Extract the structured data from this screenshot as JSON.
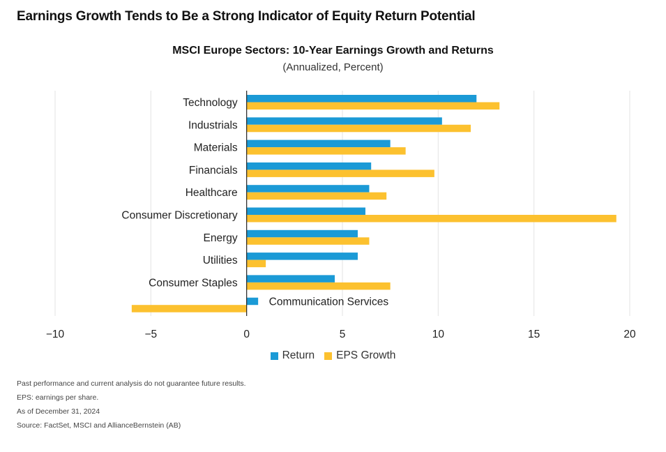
{
  "headline": "Earnings Growth Tends to Be a Strong Indicator of Equity Return Potential",
  "colors": {
    "return": "#1b9ad6",
    "eps": "#fcc12f",
    "grid": "#e3e3e3",
    "axis": "#222222"
  },
  "chart_data": {
    "type": "bar",
    "orientation": "horizontal",
    "title": "MSCI Europe Sectors: 10-Year Earnings Growth and Returns",
    "subtitle": "(Annualized, Percent)",
    "categories": [
      "Technology",
      "Industrials",
      "Materials",
      "Financials",
      "Healthcare",
      "Consumer Discretionary",
      "Energy",
      "Utilities",
      "Consumer Staples",
      "Communication Services"
    ],
    "series": [
      {
        "name": "Return",
        "values": [
          12.0,
          10.2,
          7.5,
          6.5,
          6.4,
          6.2,
          5.8,
          5.8,
          4.6,
          0.6
        ]
      },
      {
        "name": "EPS Growth",
        "values": [
          13.2,
          11.7,
          8.3,
          9.8,
          7.3,
          19.3,
          6.4,
          1.0,
          7.5,
          -6.0
        ]
      }
    ],
    "xlim": [
      -10,
      20
    ],
    "xticks": [
      -10,
      -5,
      0,
      5,
      10,
      15,
      20
    ],
    "xtick_labels": [
      "−10",
      "−5",
      "0",
      "5",
      "10",
      "15",
      "20"
    ],
    "grid": "vertical",
    "legend": "bottom-center"
  },
  "notes": [
    "Past performance and current analysis do not guarantee future results.",
    "EPS: earnings per share.",
    "As of December 31, 2024",
    "Source: FactSet, MSCI and AllianceBernstein (AB)"
  ]
}
